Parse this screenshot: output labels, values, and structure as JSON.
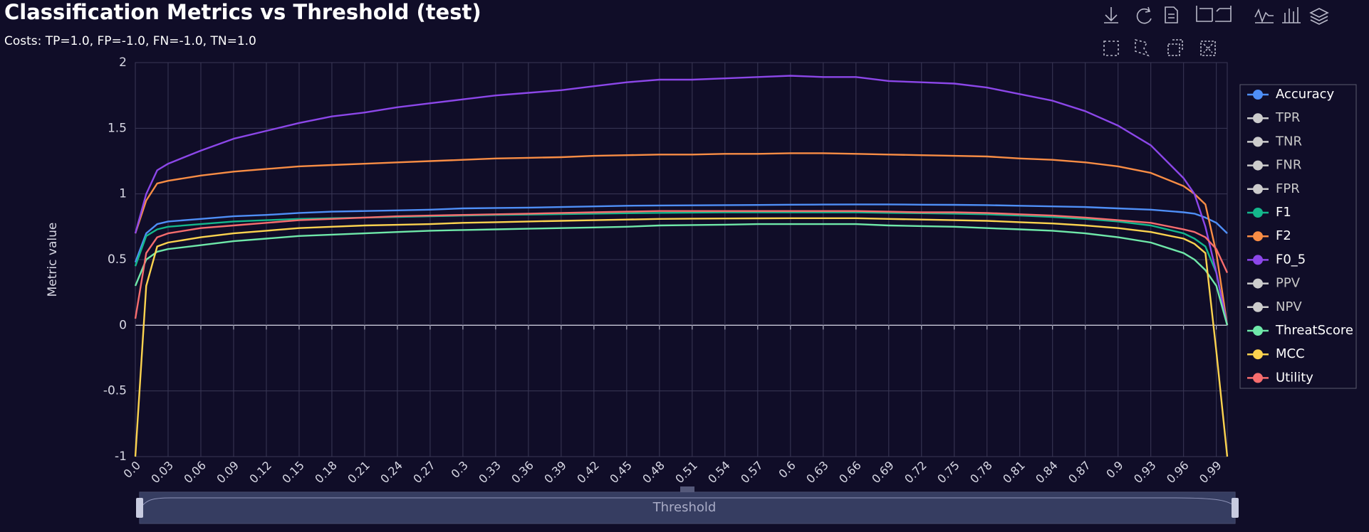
{
  "chart_data": {
    "type": "line",
    "title": "Classification Metrics vs Threshold (test)",
    "subtitle": "Costs: TP=1.0, FP=-1.0, FN=-1.0, TN=1.0",
    "ylabel": "Metric value",
    "xlabel": "Threshold",
    "x": [
      0,
      0.01,
      0.02,
      0.03,
      0.06,
      0.09,
      0.12,
      0.15,
      0.18,
      0.21,
      0.24,
      0.27,
      0.3,
      0.33,
      0.36,
      0.39,
      0.42,
      0.45,
      0.48,
      0.51,
      0.54,
      0.57,
      0.6,
      0.63,
      0.66,
      0.69,
      0.72,
      0.75,
      0.78,
      0.81,
      0.84,
      0.87,
      0.9,
      0.93,
      0.96,
      0.97,
      0.98,
      0.99,
      1.0
    ],
    "xlim": [
      0,
      1
    ],
    "xticks": [
      {
        "value": 0,
        "label": "0.0"
      },
      0.03,
      0.06,
      0.09,
      0.12,
      0.15,
      0.18,
      0.21,
      0.24,
      0.27,
      0.3,
      0.33,
      0.36,
      0.39,
      0.42,
      0.45,
      0.48,
      0.51,
      0.54,
      0.57,
      0.6,
      0.63,
      0.66,
      0.69,
      0.72,
      0.75,
      0.78,
      0.81,
      0.84,
      0.87,
      0.9,
      0.93,
      0.96,
      0.99
    ],
    "ylim": [
      -1,
      2
    ],
    "yticks": [
      2,
      1.5,
      1,
      0.5,
      0,
      -0.5,
      -1
    ],
    "grid": true,
    "legend": "right",
    "series": [
      {
        "name": "Accuracy",
        "color": "#4f8ff7",
        "values": [
          0.48,
          0.7,
          0.77,
          0.79,
          0.81,
          0.83,
          0.84,
          0.855,
          0.865,
          0.87,
          0.875,
          0.88,
          0.89,
          0.893,
          0.896,
          0.9,
          0.905,
          0.91,
          0.912,
          0.913,
          0.915,
          0.916,
          0.918,
          0.919,
          0.92,
          0.92,
          0.918,
          0.917,
          0.915,
          0.91,
          0.905,
          0.9,
          0.89,
          0.88,
          0.86,
          0.85,
          0.82,
          0.78,
          0.7
        ]
      },
      {
        "name": "TPR",
        "visible": false
      },
      {
        "name": "TNR",
        "visible": false
      },
      {
        "name": "FNR",
        "visible": false
      },
      {
        "name": "FPR",
        "visible": false
      },
      {
        "name": "F1",
        "color": "#14b88c",
        "values": [
          0.45,
          0.68,
          0.73,
          0.75,
          0.77,
          0.79,
          0.8,
          0.81,
          0.815,
          0.82,
          0.825,
          0.83,
          0.835,
          0.84,
          0.843,
          0.846,
          0.85,
          0.853,
          0.856,
          0.858,
          0.86,
          0.86,
          0.86,
          0.86,
          0.86,
          0.856,
          0.853,
          0.85,
          0.845,
          0.835,
          0.825,
          0.81,
          0.79,
          0.76,
          0.7,
          0.66,
          0.6,
          0.4,
          0
        ]
      },
      {
        "name": "F2",
        "color": "#f98d45",
        "values": [
          0.7,
          0.95,
          1.08,
          1.1,
          1.14,
          1.17,
          1.19,
          1.21,
          1.22,
          1.23,
          1.24,
          1.25,
          1.26,
          1.27,
          1.275,
          1.28,
          1.29,
          1.295,
          1.3,
          1.3,
          1.305,
          1.305,
          1.31,
          1.31,
          1.305,
          1.3,
          1.295,
          1.29,
          1.285,
          1.27,
          1.26,
          1.24,
          1.21,
          1.16,
          1.06,
          1.0,
          0.92,
          0.55,
          0
        ]
      },
      {
        "name": "F0_5",
        "color": "#8c47e9",
        "values": [
          0.7,
          1.0,
          1.18,
          1.23,
          1.33,
          1.42,
          1.48,
          1.54,
          1.59,
          1.62,
          1.66,
          1.69,
          1.72,
          1.75,
          1.77,
          1.79,
          1.82,
          1.85,
          1.87,
          1.87,
          1.88,
          1.89,
          1.9,
          1.89,
          1.89,
          1.86,
          1.85,
          1.84,
          1.81,
          1.76,
          1.71,
          1.63,
          1.52,
          1.37,
          1.12,
          1.0,
          0.75,
          0.4,
          0
        ]
      },
      {
        "name": "PPV",
        "visible": false
      },
      {
        "name": "NPV",
        "visible": false
      },
      {
        "name": "ThreatScore",
        "color": "#6fe8a9",
        "values": [
          0.3,
          0.5,
          0.56,
          0.58,
          0.61,
          0.64,
          0.66,
          0.68,
          0.69,
          0.7,
          0.71,
          0.72,
          0.725,
          0.73,
          0.735,
          0.74,
          0.745,
          0.75,
          0.76,
          0.763,
          0.766,
          0.77,
          0.77,
          0.77,
          0.77,
          0.76,
          0.755,
          0.75,
          0.74,
          0.73,
          0.72,
          0.7,
          0.67,
          0.63,
          0.55,
          0.5,
          0.42,
          0.3,
          0
        ]
      },
      {
        "name": "MCC",
        "color": "#fcd34f",
        "values": [
          -1.0,
          0.3,
          0.6,
          0.63,
          0.67,
          0.7,
          0.72,
          0.74,
          0.75,
          0.76,
          0.765,
          0.77,
          0.78,
          0.785,
          0.79,
          0.795,
          0.8,
          0.805,
          0.81,
          0.812,
          0.813,
          0.814,
          0.815,
          0.815,
          0.815,
          0.81,
          0.805,
          0.8,
          0.795,
          0.785,
          0.775,
          0.76,
          0.74,
          0.71,
          0.66,
          0.62,
          0.55,
          -0.2,
          -1.0
        ]
      },
      {
        "name": "Utility",
        "color": "#f76d6e",
        "values": [
          0.05,
          0.55,
          0.67,
          0.7,
          0.74,
          0.76,
          0.78,
          0.8,
          0.81,
          0.82,
          0.83,
          0.835,
          0.84,
          0.845,
          0.85,
          0.855,
          0.86,
          0.865,
          0.87,
          0.87,
          0.87,
          0.87,
          0.87,
          0.87,
          0.87,
          0.865,
          0.86,
          0.86,
          0.855,
          0.845,
          0.835,
          0.82,
          0.8,
          0.78,
          0.73,
          0.71,
          0.67,
          0.58,
          0.4
        ]
      }
    ]
  }
}
